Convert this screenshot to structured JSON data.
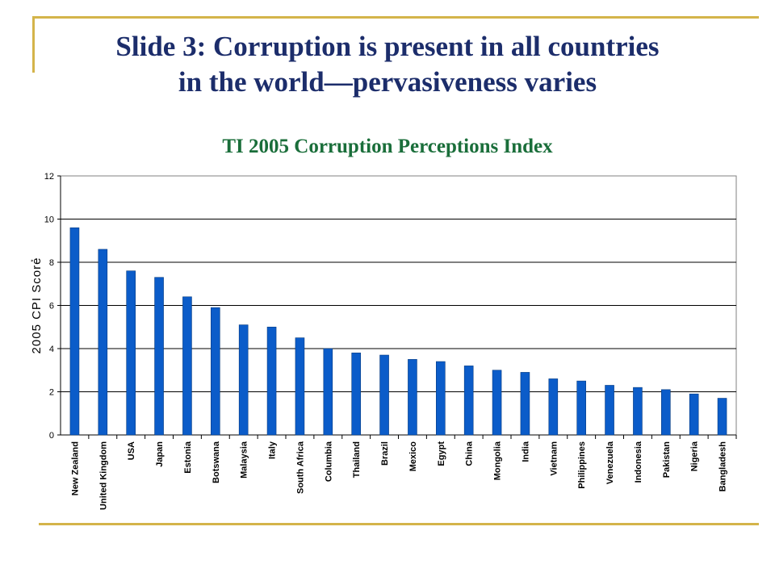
{
  "slide": {
    "title_line1": "Slide 3: Corruption is present in all countries",
    "title_line2": "in the world—pervasiveness varies"
  },
  "chart_data": {
    "type": "bar",
    "title": "TI 2005 Corruption Perceptions Index",
    "ylabel": "2005 CPI Score",
    "ylabel_marker": "*",
    "ylim": [
      0,
      12
    ],
    "yticks": [
      0,
      2,
      4,
      6,
      8,
      10,
      12
    ],
    "grid": true,
    "categories": [
      "New Zealand",
      "United Kingdom",
      "USA",
      "Japan",
      "Estonia",
      "Botswana",
      "Malaysia",
      "Italy",
      "South Africa",
      "Columbia",
      "Thailand",
      "Brazil",
      "Mexico",
      "Egypt",
      "China",
      "Mongolia",
      "India",
      "Vietnam",
      "Philippines",
      "Venezuela",
      "Indonesia",
      "Pakistan",
      "Nigeria",
      "Bangladesh"
    ],
    "values": [
      9.6,
      8.6,
      7.6,
      7.3,
      6.4,
      5.9,
      5.1,
      5.0,
      4.5,
      4.0,
      3.8,
      3.7,
      3.5,
      3.4,
      3.2,
      3.0,
      2.9,
      2.6,
      2.5,
      2.3,
      2.2,
      2.1,
      1.9,
      1.7
    ],
    "bar_color": "#0b5cc9"
  }
}
